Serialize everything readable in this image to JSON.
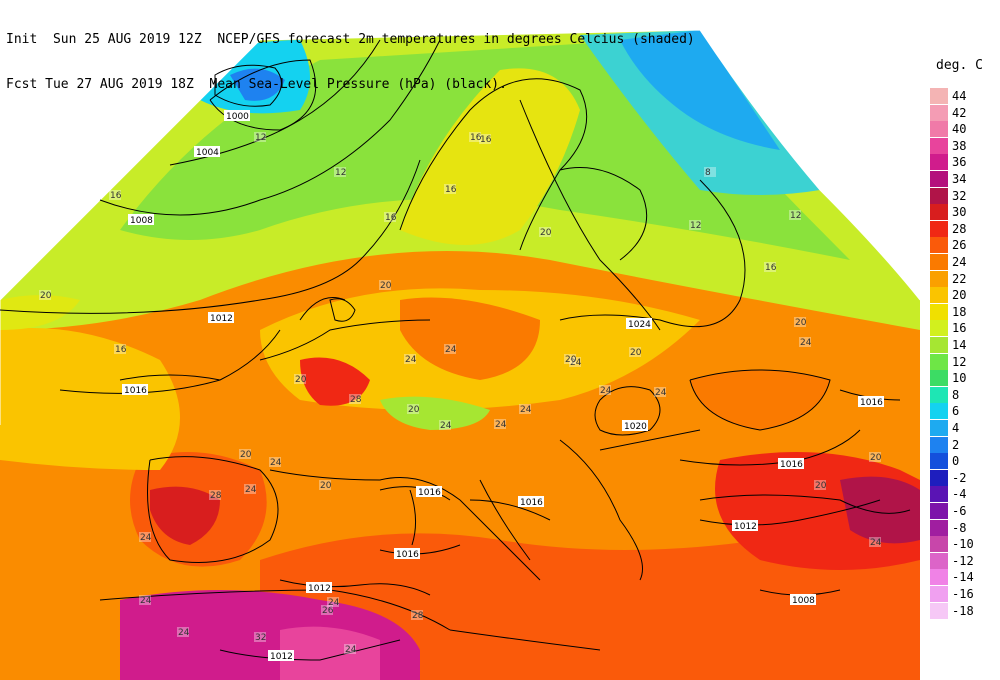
{
  "header": {
    "line1": "Init  Sun 25 AUG 2019 12Z  NCEP/GFS forecast 2m temperatures in degrees Celcius (shaded)",
    "line2": "Fcst Tue 27 AUG 2019 18Z  Mean Sea-Level Pressure (hPa) (black)."
  },
  "legend": {
    "title": "deg. C",
    "items": [
      {
        "label": "44",
        "color": "#f4b4b4"
      },
      {
        "label": "42",
        "color": "#f49cb4"
      },
      {
        "label": "40",
        "color": "#f07aa8"
      },
      {
        "label": "38",
        "color": "#e8449c"
      },
      {
        "label": "36",
        "color": "#d01c8c"
      },
      {
        "label": "34",
        "color": "#b4107c"
      },
      {
        "label": "32",
        "color": "#b01448"
      },
      {
        "label": "30",
        "color": "#d81e1e"
      },
      {
        "label": "28",
        "color": "#f02814"
      },
      {
        "label": "26",
        "color": "#fa5a0a"
      },
      {
        "label": "24",
        "color": "#fa7a00"
      },
      {
        "label": "22",
        "color": "#faa000"
      },
      {
        "label": "20",
        "color": "#fac400"
      },
      {
        "label": "18",
        "color": "#f0e000"
      },
      {
        "label": "16",
        "color": "#d2f01e"
      },
      {
        "label": "14",
        "color": "#a6e632"
      },
      {
        "label": "12",
        "color": "#6ee646"
      },
      {
        "label": "10",
        "color": "#3cdc64"
      },
      {
        "label": "8",
        "color": "#1ee6b4"
      },
      {
        "label": "6",
        "color": "#14d2f0"
      },
      {
        "label": "4",
        "color": "#1eaaf0"
      },
      {
        "label": "2",
        "color": "#1e82f0"
      },
      {
        "label": "0",
        "color": "#1450dc"
      },
      {
        "label": "-2",
        "color": "#1e1ebe"
      },
      {
        "label": "-4",
        "color": "#5a14b4"
      },
      {
        "label": "-6",
        "color": "#7d14aa"
      },
      {
        "label": "-8",
        "color": "#a01ea0"
      },
      {
        "label": "-10",
        "color": "#c846aa"
      },
      {
        "label": "-12",
        "color": "#dc64c8"
      },
      {
        "label": "-14",
        "color": "#f082e6"
      },
      {
        "label": "-16",
        "color": "#f0a0f0"
      },
      {
        "label": "-18",
        "color": "#f6c8f6"
      }
    ]
  },
  "isobars": [
    {
      "label": "1000"
    },
    {
      "label": "1004"
    },
    {
      "label": "1008"
    },
    {
      "label": "1012"
    },
    {
      "label": "1016"
    },
    {
      "label": "1024"
    },
    {
      "label": "1020"
    },
    {
      "label": "1016"
    },
    {
      "label": "1016"
    },
    {
      "label": "1016"
    },
    {
      "label": "1016"
    },
    {
      "label": "1016"
    },
    {
      "label": "1012"
    },
    {
      "label": "1012"
    },
    {
      "label": "1012"
    },
    {
      "label": "1008"
    }
  ],
  "temp_labels": [
    "12",
    "16",
    "12",
    "16",
    "16",
    "20",
    "16",
    "20",
    "24",
    "24",
    "28",
    "24",
    "20",
    "20",
    "24",
    "28",
    "24",
    "20",
    "24",
    "20",
    "24",
    "28",
    "24",
    "24",
    "26",
    "32",
    "24",
    "12",
    "16",
    "20",
    "24",
    "24",
    "20",
    "20",
    "24",
    "24",
    "8",
    "12",
    "16",
    "20",
    "24",
    "16",
    "20",
    "24",
    "20",
    "24"
  ]
}
